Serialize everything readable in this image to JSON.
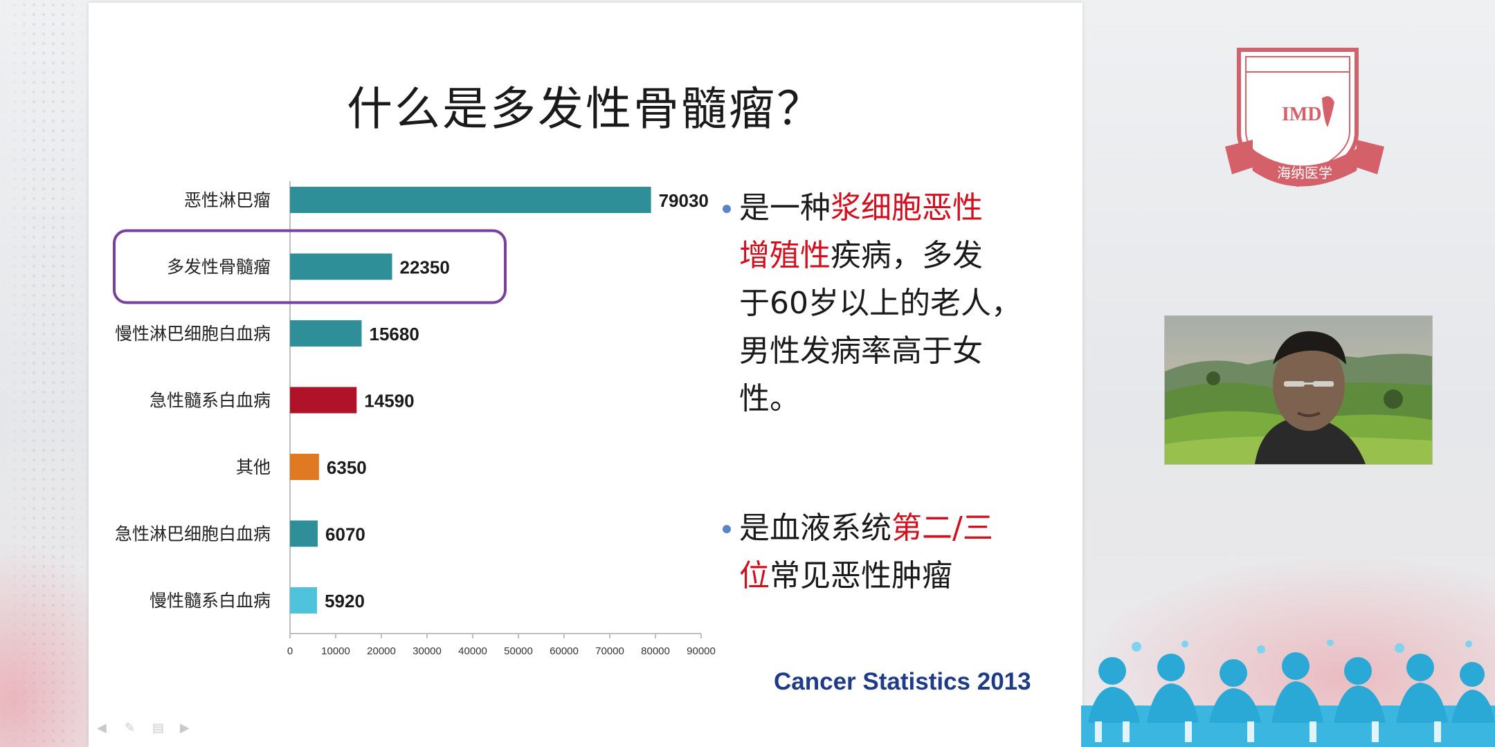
{
  "slide": {
    "title": "什么是多发性骨髓瘤？",
    "bullets": [
      {
        "lines": [
          [
            {
              "t": "是一种",
              "hl": false
            },
            {
              "t": "浆细胞恶性",
              "hl": true
            }
          ],
          [
            {
              "t": "增殖性",
              "hl": true
            },
            {
              "t": "疾病，多发",
              "hl": false
            }
          ],
          [
            {
              "t": "于60岁以上的老人，",
              "hl": false
            }
          ],
          [
            {
              "t": "男性发病率高于女",
              "hl": false
            }
          ],
          [
            {
              "t": "性。",
              "hl": false
            }
          ]
        ]
      },
      {
        "lines": [
          [
            {
              "t": "是血液系统",
              "hl": false
            },
            {
              "t": "第二/三",
              "hl": true
            }
          ],
          [
            {
              "t": "位",
              "hl": true
            },
            {
              "t": "常见恶性肿瘤",
              "hl": false
            }
          ]
        ]
      }
    ],
    "source": "Cancer Statistics 2013"
  },
  "logo": {
    "brand": "IMD",
    "caption": "海纳医学",
    "color": "#d4606a"
  },
  "colors": {
    "teal": "#2e8f99",
    "red": "#b0122a",
    "orange": "#e07a22",
    "lightblue": "#4fc3dc",
    "highlight_box": "#7b3f9e",
    "text_red": "#d0101e",
    "source_blue": "#1f3b87"
  },
  "chart_data": {
    "type": "bar",
    "orientation": "horizontal",
    "categories": [
      "恶性淋巴瘤",
      "多发性骨髓瘤",
      "慢性淋巴细胞白血病",
      "急性髓系白血病",
      "其他",
      "急性淋巴细胞白血病",
      "慢性髓系白血病"
    ],
    "values": [
      79030,
      22350,
      15680,
      14590,
      6350,
      6070,
      5920
    ],
    "bar_colors": [
      "#2e8f99",
      "#2e8f99",
      "#2e8f99",
      "#b0122a",
      "#e07a22",
      "#2e8f99",
      "#4fc3dc"
    ],
    "xlim": [
      0,
      90000
    ],
    "xticks": [
      0,
      10000,
      20000,
      30000,
      40000,
      50000,
      60000,
      70000,
      80000,
      90000
    ],
    "highlighted_category": "多发性骨髓瘤",
    "grid": false,
    "legend": false
  }
}
